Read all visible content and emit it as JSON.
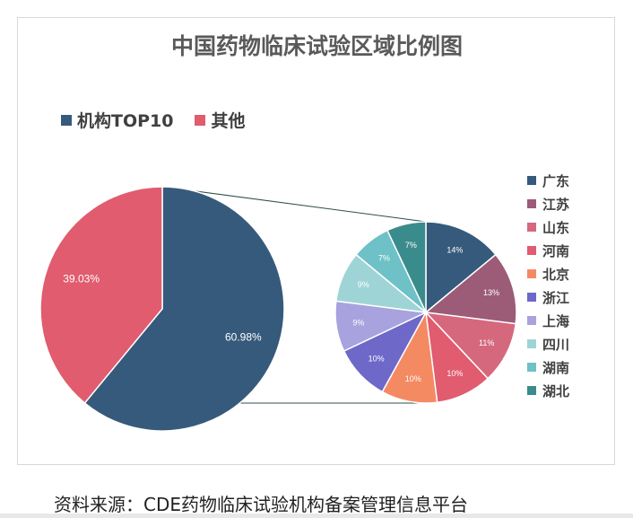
{
  "chart_data": {
    "type": "pie",
    "title": "中国药物临床试验区域比例图",
    "main_pie": {
      "slices": [
        {
          "name": "机构TOP10",
          "value": 60.98,
          "label": "60.98%",
          "color": "#365a7b"
        },
        {
          "name": "其他",
          "value": 39.03,
          "label": "39.03%",
          "color": "#e05c6e"
        }
      ]
    },
    "breakdown_pie": {
      "slices": [
        {
          "name": "广东",
          "value": 14,
          "label": "14%",
          "color": "#365a7b"
        },
        {
          "name": "江苏",
          "value": 13,
          "label": "13%",
          "color": "#9c5c78"
        },
        {
          "name": "山东",
          "value": 11,
          "label": "11%",
          "color": "#d6687e"
        },
        {
          "name": "河南",
          "value": 10,
          "label": "10%",
          "color": "#e05c6e"
        },
        {
          "name": "北京",
          "value": 10,
          "label": "10%",
          "color": "#f48a62"
        },
        {
          "name": "浙江",
          "value": 10,
          "label": "10%",
          "color": "#6e68c9"
        },
        {
          "name": "上海",
          "value": 9,
          "label": "9%",
          "color": "#a8a3de"
        },
        {
          "name": "四川",
          "value": 9,
          "label": "9%",
          "color": "#9fd4d6"
        },
        {
          "name": "湖南",
          "value": 7,
          "label": "7%",
          "color": "#6ec1c6"
        },
        {
          "name": "湖北",
          "value": 7,
          "label": "7%",
          "color": "#3a8b8c"
        }
      ]
    },
    "legend_placement": "top-left",
    "breakdown_legend_placement": "right"
  },
  "source_note": "资料来源：CDE药物临床试验机构备案管理信息平台"
}
